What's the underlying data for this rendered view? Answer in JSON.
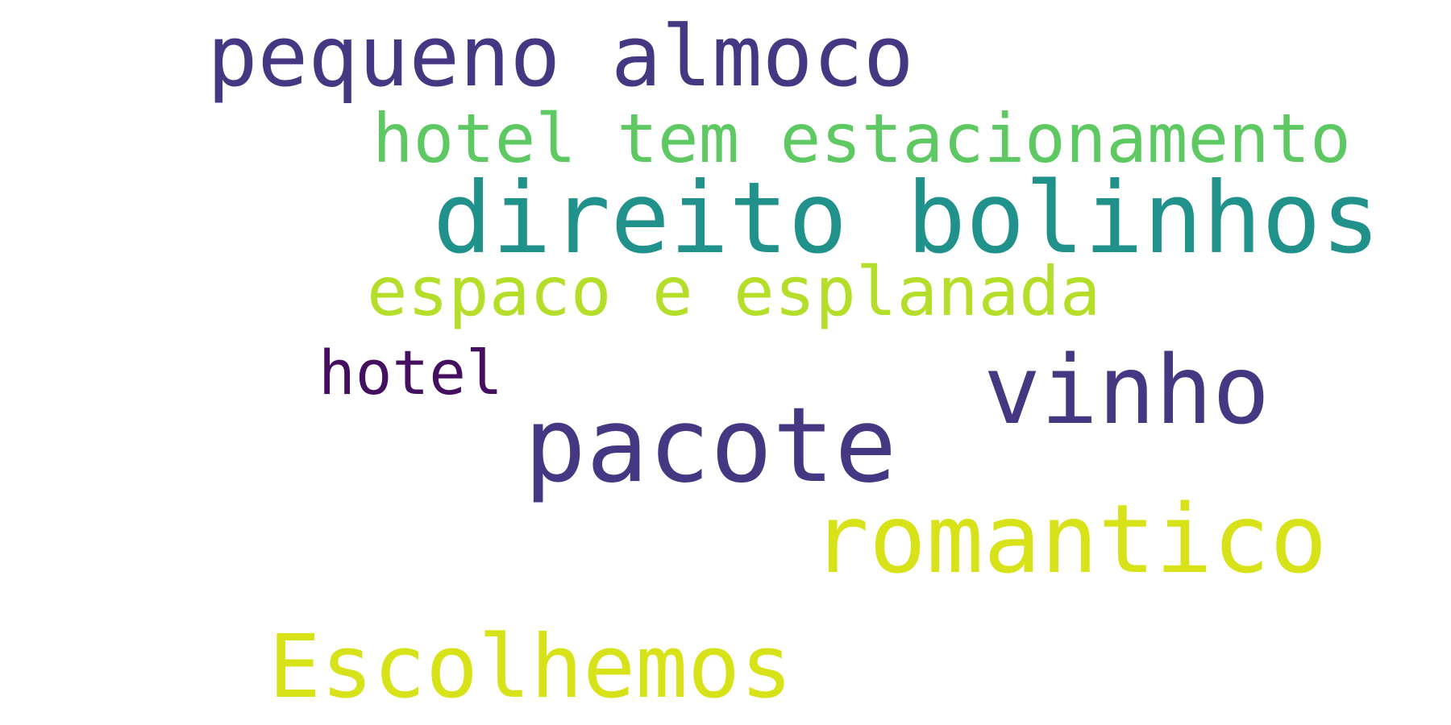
{
  "word_cloud": {
    "words": [
      {
        "text": "pequeno almoco",
        "color": "#453781"
      },
      {
        "text": "hotel tem estacionamento",
        "color": "#5ec962"
      },
      {
        "text": "direito bolinhos",
        "color": "#21918c"
      },
      {
        "text": "espaco e esplanada",
        "color": "#b5de2b"
      },
      {
        "text": "hotel",
        "color": "#440f5f"
      },
      {
        "text": "vinho",
        "color": "#453781"
      },
      {
        "text": "pacote",
        "color": "#453781"
      },
      {
        "text": "romantico",
        "color": "#d8e219"
      },
      {
        "text": "Escolhemos",
        "color": "#d8e219"
      }
    ]
  }
}
